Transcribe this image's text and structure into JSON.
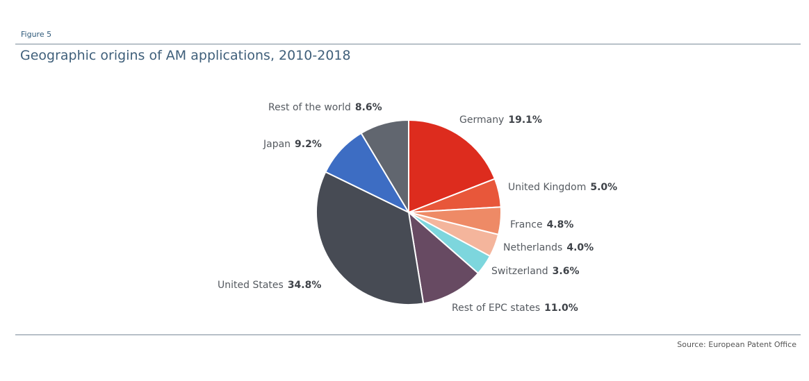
{
  "figure_label": "Figure 5",
  "source": "Source: European Patent Office",
  "chart_data": {
    "type": "pie",
    "title": "Geographic origins of AM applications, 2010-2018",
    "start": "top, clockwise",
    "slices": [
      {
        "label": "Germany",
        "value": 19.1,
        "text": "19.1%",
        "color": "#dd2c1e"
      },
      {
        "label": "United Kingdom",
        "value": 5.0,
        "text": "5.0%",
        "color": "#e8573a"
      },
      {
        "label": "France",
        "value": 4.8,
        "text": "4.8%",
        "color": "#ee8a66"
      },
      {
        "label": "Netherlands",
        "value": 4.0,
        "text": "4.0%",
        "color": "#f4b59c"
      },
      {
        "label": "Switzerland",
        "value": 3.6,
        "text": "3.6%",
        "color": "#7dd6dd"
      },
      {
        "label": "Rest of EPC states",
        "value": 11.0,
        "text": "11.0%",
        "color": "#674a62"
      },
      {
        "label": "United States",
        "value": 34.8,
        "text": "34.8%",
        "color": "#474b54"
      },
      {
        "label": "Japan",
        "value": 9.2,
        "text": "9.2%",
        "color": "#3d6dc3"
      },
      {
        "label": "Rest of the world",
        "value": 8.6,
        "text": "8.6%",
        "color": "#61666f"
      }
    ]
  }
}
